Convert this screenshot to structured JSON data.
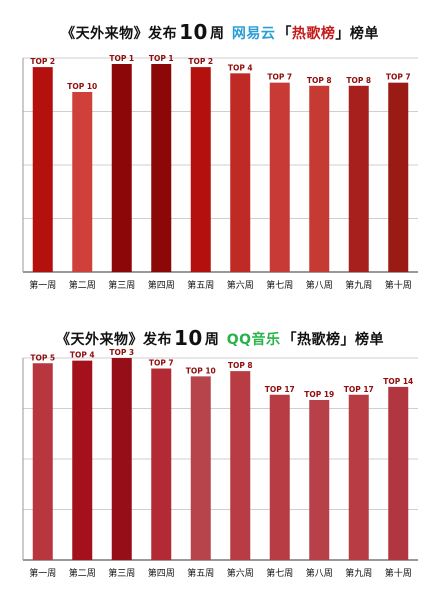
{
  "chart_data": [
    {
      "type": "bar",
      "title": {
        "prefix": "《天外来物》发布",
        "number": "10",
        "unit": "周",
        "platform": "网易云",
        "platform_color": "#2a9fd6",
        "suffix_open": "「",
        "chart_name": "热歌榜",
        "chart_name_color": "#c41a1a",
        "suffix_close": "」榜单"
      },
      "categories": [
        "第一周",
        "第二周",
        "第三周",
        "第四周",
        "第五周",
        "第六周",
        "第七周",
        "第八周",
        "第九周",
        "第十周"
      ],
      "labels": [
        "TOP 2",
        "TOP 10",
        "TOP 1",
        "TOP 1",
        "TOP 2",
        "TOP 4",
        "TOP 7",
        "TOP 8",
        "TOP 8",
        "TOP 7"
      ],
      "values": [
        2,
        10,
        1,
        1,
        2,
        4,
        7,
        8,
        8,
        7
      ],
      "colors": [
        "#b3100e",
        "#d0403a",
        "#8c0707",
        "#8c0707",
        "#b3100e",
        "#c02a24",
        "#c83a35",
        "#c53a33",
        "#a8201e",
        "#9a1a14"
      ],
      "label_color": "#8e0f0e",
      "grid": true
    },
    {
      "type": "bar",
      "title": {
        "prefix": "《天外来物》发布",
        "number": "10",
        "unit": "周",
        "platform": "QQ音乐",
        "platform_color": "#27b24a",
        "suffix_open": "「",
        "chart_name": "热歌榜",
        "chart_name_color": "#111111",
        "suffix_close": "」榜单"
      },
      "categories": [
        "第一周",
        "第二周",
        "第三周",
        "第四周",
        "第五周",
        "第六周",
        "第七周",
        "第八周",
        "第九周",
        "第十周"
      ],
      "labels": [
        "TOP 5",
        "TOP 4",
        "TOP 3",
        "TOP 7",
        "TOP 10",
        "TOP 8",
        "TOP 17",
        "TOP 19",
        "TOP 17",
        "TOP 14"
      ],
      "values": [
        5,
        4,
        3,
        7,
        10,
        8,
        17,
        19,
        17,
        14
      ],
      "colors": [
        "#b8373f",
        "#a4101c",
        "#960e18",
        "#b22a34",
        "#b7434b",
        "#b83c44",
        "#b83c44",
        "#b84048",
        "#b83c44",
        "#b23640"
      ],
      "label_color": "#8e0f0e",
      "grid": true
    }
  ]
}
